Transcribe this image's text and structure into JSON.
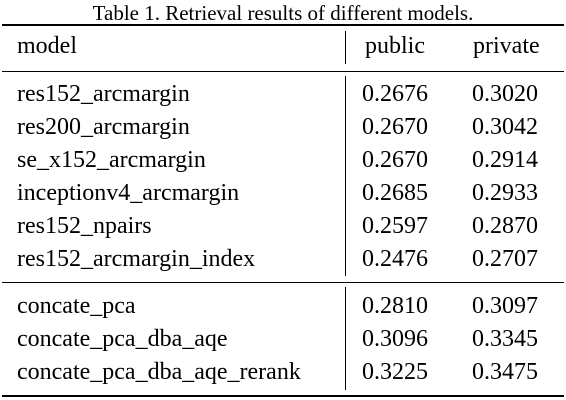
{
  "caption": "Table 1.  Retrieval results of different models.",
  "table": {
    "headers": {
      "model": "model",
      "public": "public",
      "private": "private"
    },
    "group1": [
      {
        "model": "res152_arcmargin",
        "public": "0.2676",
        "private": "0.3020"
      },
      {
        "model": "res200_arcmargin",
        "public": "0.2670",
        "private": "0.3042"
      },
      {
        "model": "se_x152_arcmargin",
        "public": "0.2670",
        "private": "0.2914"
      },
      {
        "model": "inceptionv4_arcmargin",
        "public": "0.2685",
        "private": "0.2933"
      },
      {
        "model": "res152_npairs",
        "public": "0.2597",
        "private": "0.2870"
      },
      {
        "model": "res152_arcmargin_index",
        "public": "0.2476",
        "private": "0.2707"
      }
    ],
    "group2": [
      {
        "model": "concate_pca",
        "public": "0.2810",
        "private": "0.3097"
      },
      {
        "model": "concate_pca_dba_aqe",
        "public": "0.3096",
        "private": "0.3345"
      },
      {
        "model": "concate_pca_dba_aqe_rerank",
        "public": "0.3225",
        "private": "0.3475"
      }
    ]
  }
}
